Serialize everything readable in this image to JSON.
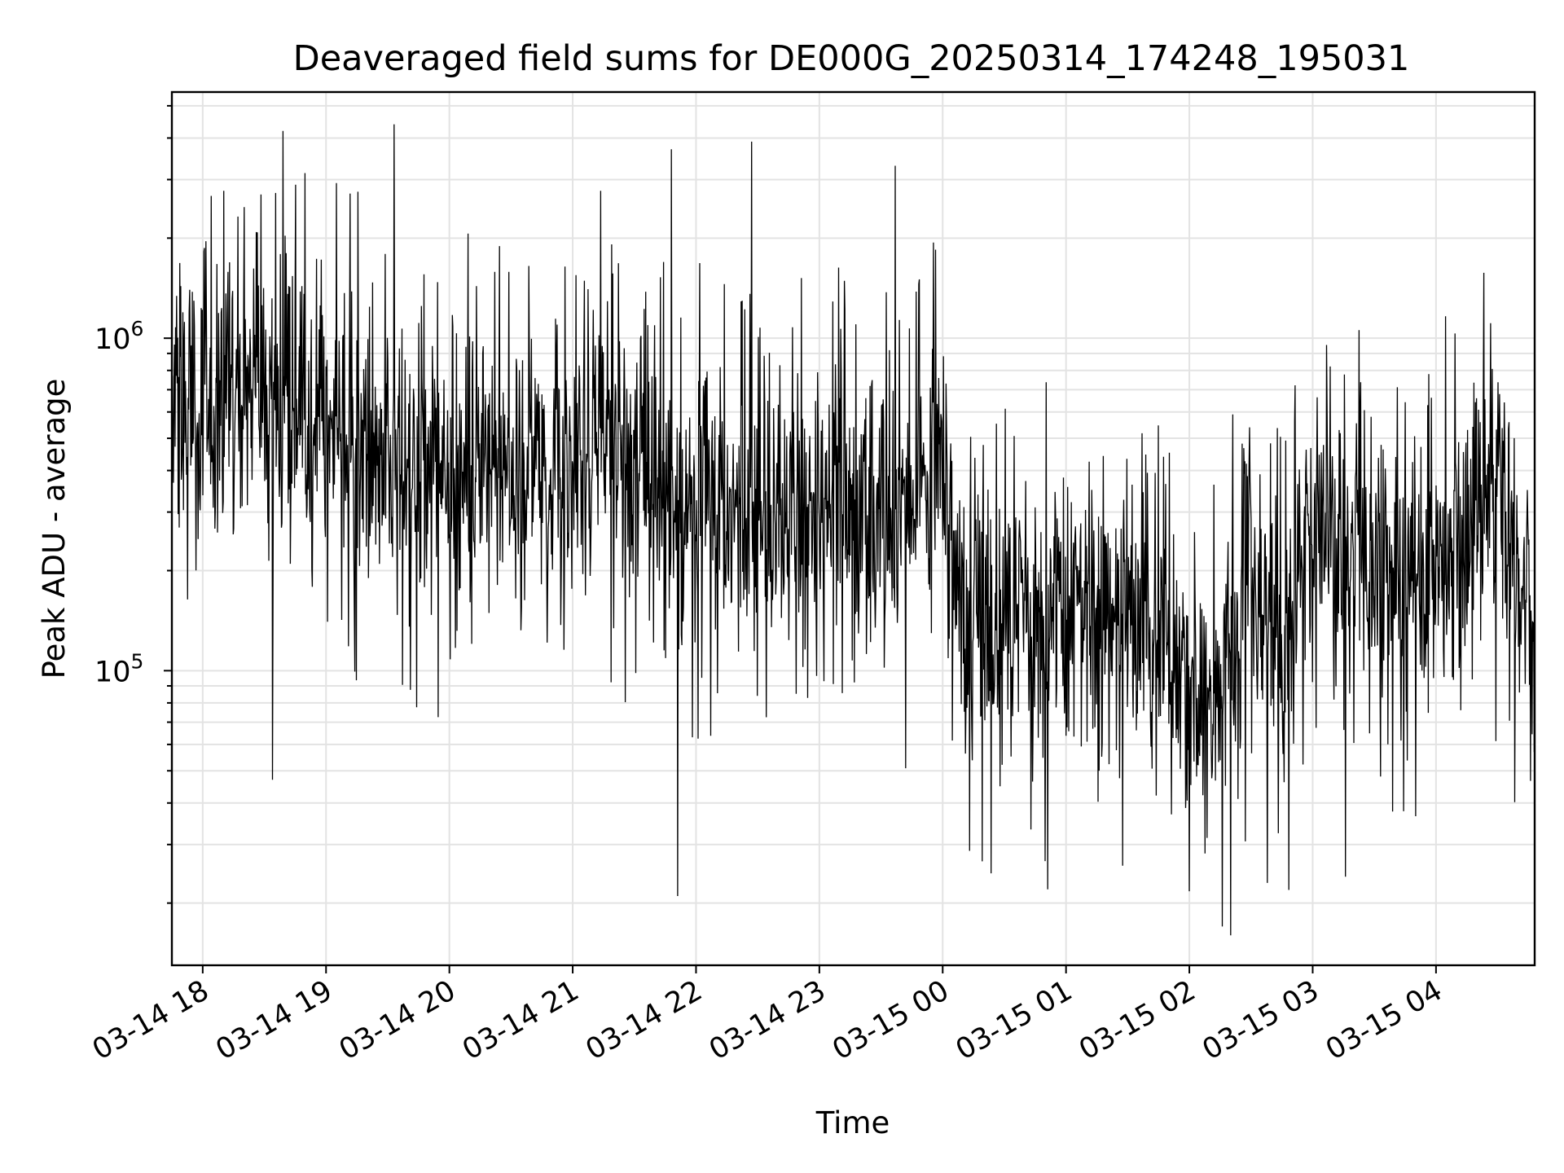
{
  "chart_data": {
    "type": "line",
    "title": "Deaveraged field sums for DE000G_20250314_174248_195031",
    "xlabel": "Time",
    "ylabel": "Peak ADU - average",
    "yscale": "log",
    "ylim": [
      13000,
      5500000
    ],
    "xlim": [
      "2025-03-14 17:45",
      "2025-03-15 04:48"
    ],
    "grid": true,
    "x_ticks": [
      {
        "t": "2025-03-14 18:00",
        "label": "03-14 18"
      },
      {
        "t": "2025-03-14 19:00",
        "label": "03-14 19"
      },
      {
        "t": "2025-03-14 20:00",
        "label": "03-14 20"
      },
      {
        "t": "2025-03-14 21:00",
        "label": "03-14 21"
      },
      {
        "t": "2025-03-14 22:00",
        "label": "03-14 22"
      },
      {
        "t": "2025-03-14 23:00",
        "label": "03-14 23"
      },
      {
        "t": "2025-03-15 00:00",
        "label": "03-15 00"
      },
      {
        "t": "2025-03-15 01:00",
        "label": "03-15 01"
      },
      {
        "t": "2025-03-15 02:00",
        "label": "03-15 02"
      },
      {
        "t": "2025-03-15 03:00",
        "label": "03-15 03"
      },
      {
        "t": "2025-03-15 04:00",
        "label": "03-15 04"
      }
    ],
    "y_ticks": [
      {
        "value": 100000,
        "base": "10",
        "exp": "5"
      },
      {
        "value": 1000000,
        "base": "10",
        "exp": "6"
      }
    ],
    "series": [
      {
        "color": "#000000",
        "x_start": "2025-03-14 17:45",
        "x_end": "2025-03-15 04:48",
        "trend": [
          {
            "t": "2025-03-14 17:45",
            "y": 500000
          },
          {
            "t": "2025-03-14 18:05",
            "y": 700000
          },
          {
            "t": "2025-03-14 18:40",
            "y": 620000
          },
          {
            "t": "2025-03-14 19:15",
            "y": 500000
          },
          {
            "t": "2025-03-14 20:00",
            "y": 380000
          },
          {
            "t": "2025-03-14 20:45",
            "y": 420000
          },
          {
            "t": "2025-03-14 21:15",
            "y": 520000
          },
          {
            "t": "2025-03-14 21:45",
            "y": 330000
          },
          {
            "t": "2025-03-14 22:30",
            "y": 280000
          },
          {
            "t": "2025-03-14 23:00",
            "y": 300000
          },
          {
            "t": "2025-03-14 23:40",
            "y": 260000
          },
          {
            "t": "2025-03-14 23:58",
            "y": 450000
          },
          {
            "t": "2025-03-15 00:10",
            "y": 130000
          },
          {
            "t": "2025-03-15 00:45",
            "y": 140000
          },
          {
            "t": "2025-03-15 01:15",
            "y": 150000
          },
          {
            "t": "2025-03-15 01:50",
            "y": 110000
          },
          {
            "t": "2025-03-15 02:10",
            "y": 60000
          },
          {
            "t": "2025-03-15 02:30",
            "y": 200000
          },
          {
            "t": "2025-03-15 02:45",
            "y": 100000
          },
          {
            "t": "2025-03-15 03:00",
            "y": 250000
          },
          {
            "t": "2025-03-15 03:30",
            "y": 200000
          },
          {
            "t": "2025-03-15 04:00",
            "y": 190000
          },
          {
            "t": "2025-03-15 04:30",
            "y": 350000
          },
          {
            "t": "2025-03-15 04:48",
            "y": 110000
          }
        ],
        "spikes": [
          {
            "t": "2025-03-14 18:39",
            "y": 4200000
          },
          {
            "t": "2025-03-14 19:33",
            "y": 4400000
          },
          {
            "t": "2025-03-14 22:27",
            "y": 3900000
          },
          {
            "t": "2025-03-14 23:37",
            "y": 3300000
          },
          {
            "t": "2025-03-14 21:48",
            "y": 3700000
          },
          {
            "t": "2025-03-14 18:34",
            "y": 47000
          },
          {
            "t": "2025-03-14 21:51",
            "y": 21000
          },
          {
            "t": "2025-03-15 00:51",
            "y": 22000
          },
          {
            "t": "2025-03-15 02:20",
            "y": 16000
          },
          {
            "t": "2025-03-15 02:16",
            "y": 17000
          },
          {
            "t": "2025-03-15 02:38",
            "y": 23000
          },
          {
            "t": "2025-03-15 03:16",
            "y": 24000
          }
        ]
      }
    ]
  }
}
